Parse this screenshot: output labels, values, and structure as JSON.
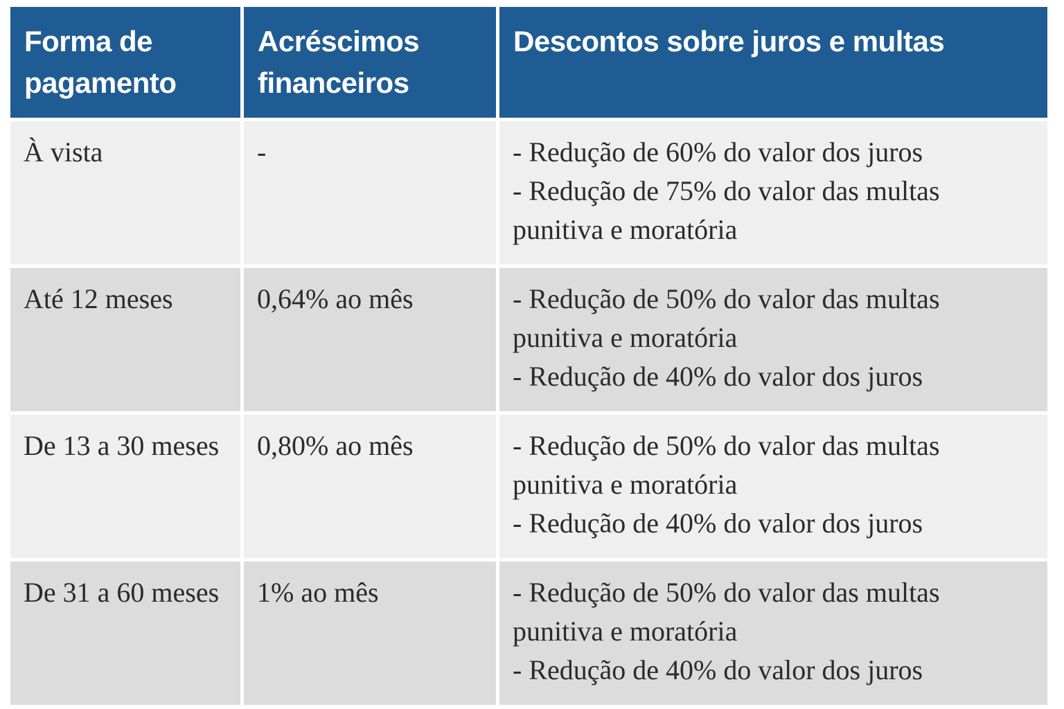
{
  "table": {
    "colors": {
      "header_bg": "#205c94",
      "header_text": "#ffffff",
      "row_light": "#efefef",
      "row_dark": "#dcdcdc",
      "body_text": "#2b2b2b"
    },
    "headers": [
      "Forma de pagamento",
      "Acréscimos financeiros",
      "Descontos sobre juros e multas"
    ],
    "rows": [
      {
        "forma_pagamento": "À vista",
        "acrescimos_financeiros": "-",
        "descontos": [
          "- Redução de 60% do valor dos juros",
          "- Redução de 75% do valor das multas punitiva e moratória"
        ]
      },
      {
        "forma_pagamento": "Até 12 meses",
        "acrescimos_financeiros": "0,64% ao mês",
        "descontos": [
          "- Redução de 50% do valor das multas punitiva e moratória",
          "- Redução de 40% do valor dos juros"
        ]
      },
      {
        "forma_pagamento": "De 13 a 30 meses",
        "acrescimos_financeiros": "0,80% ao mês",
        "descontos": [
          "- Redução de 50% do valor das multas punitiva e moratória",
          "- Redução de 40% do valor dos juros"
        ]
      },
      {
        "forma_pagamento": "De 31 a 60 meses",
        "acrescimos_financeiros": "1% ao mês",
        "descontos": [
          "- Redução de 50% do valor das multas punitiva e moratória",
          "- Redução de 40% do valor dos juros"
        ]
      }
    ]
  }
}
